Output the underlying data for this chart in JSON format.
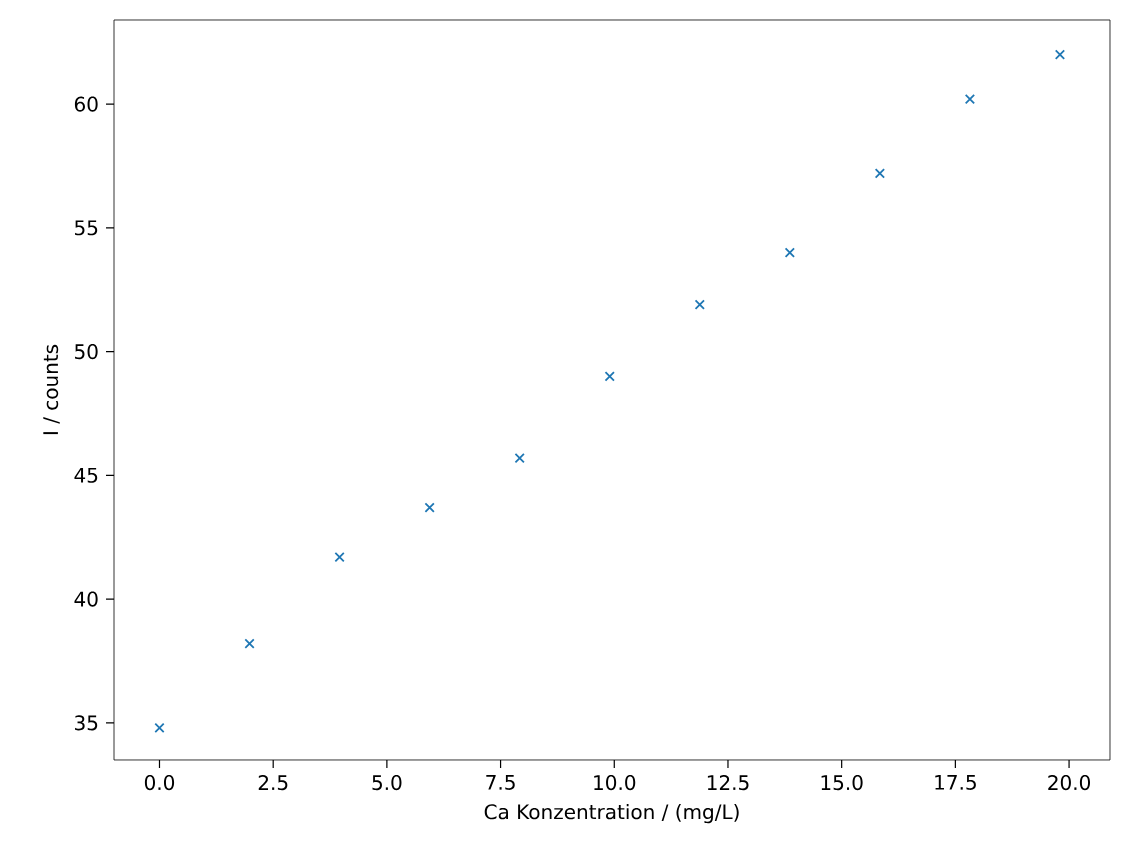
{
  "chart_data": {
    "type": "scatter",
    "xlabel": "Ca Konzentration / (mg/L)",
    "ylabel": "I / counts",
    "x": [
      0,
      1.98,
      3.96,
      5.94,
      7.92,
      9.9,
      11.88,
      13.86,
      15.84,
      17.82,
      19.8
    ],
    "series": [
      {
        "color": "#1f77b4",
        "values": [
          34.8,
          38.2,
          41.7,
          43.7,
          45.7,
          49.0,
          51.9,
          54.0,
          57.2,
          60.2,
          62.0
        ]
      }
    ],
    "marker": "cross",
    "xlim": [
      -1.0,
      20.9
    ],
    "ylim": [
      33.5,
      63.4
    ],
    "xticks": [
      {
        "value": 0,
        "label": "0.0"
      },
      {
        "value": 2.5,
        "label": "2.5"
      },
      {
        "value": 5,
        "label": "5.0"
      },
      {
        "value": 7.5,
        "label": "7.5"
      },
      {
        "value": 10,
        "label": "10.0"
      },
      {
        "value": 12.5,
        "label": "12.5"
      },
      {
        "value": 15,
        "label": "15.0"
      },
      {
        "value": 17.5,
        "label": "17.5"
      },
      {
        "value": 20,
        "label": "20.0"
      }
    ],
    "yticks": [
      35,
      40,
      45,
      50,
      55,
      60
    ],
    "grid": false
  }
}
